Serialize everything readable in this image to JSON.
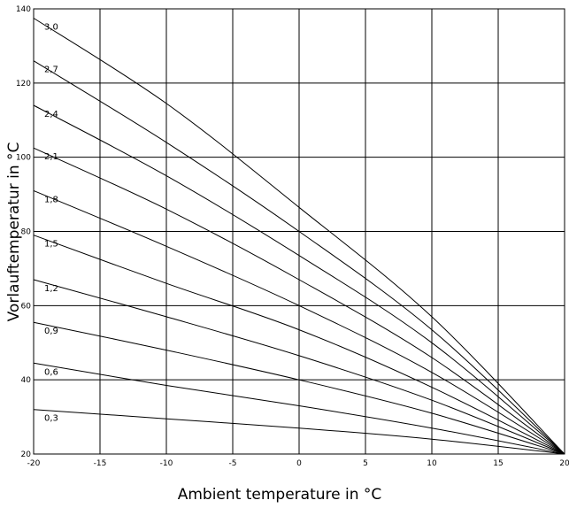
{
  "chart_data": {
    "type": "line",
    "title": "",
    "xlabel": "Ambient temperature in °C",
    "ylabel": "Vorlauftemperatur in °C",
    "xlim": [
      -20,
      20
    ],
    "ylim": [
      20,
      140
    ],
    "xticks": [
      -20,
      -15,
      -10,
      -5,
      0,
      5,
      10,
      15,
      20
    ],
    "yticks": [
      20,
      40,
      60,
      80,
      100,
      120,
      140
    ],
    "ytick_labels": [
      "20",
      "40",
      "60",
      "80",
      "100",
      "120",
      "140"
    ],
    "grid": true,
    "series": [
      {
        "name": "0,3",
        "x": [
          -20,
          -10,
          0,
          10,
          20
        ],
        "y": [
          32,
          29.5,
          27,
          24,
          20
        ]
      },
      {
        "name": "0,6",
        "x": [
          -20,
          -10,
          0,
          10,
          20
        ],
        "y": [
          44.5,
          38.5,
          33,
          27,
          20
        ]
      },
      {
        "name": "0,9",
        "x": [
          -20,
          -10,
          0,
          10,
          20
        ],
        "y": [
          55.5,
          48,
          40,
          31,
          20
        ]
      },
      {
        "name": "1,2",
        "x": [
          -20,
          -10,
          0,
          10,
          20
        ],
        "y": [
          67,
          57,
          46.5,
          34.5,
          20
        ]
      },
      {
        "name": "1,5",
        "x": [
          -20,
          -10,
          0,
          10,
          20
        ],
        "y": [
          79,
          66,
          53.5,
          38,
          20
        ]
      },
      {
        "name": "1,8",
        "x": [
          -20,
          -10,
          0,
          10,
          20
        ],
        "y": [
          91,
          76,
          60,
          42,
          20
        ]
      },
      {
        "name": "2,1",
        "x": [
          -20,
          -10,
          0,
          10,
          20
        ],
        "y": [
          102.5,
          86,
          67,
          46,
          20
        ]
      },
      {
        "name": "2,4",
        "x": [
          -20,
          -10,
          0,
          10,
          20
        ],
        "y": [
          114,
          95,
          73.5,
          50,
          20
        ]
      },
      {
        "name": "2,7",
        "x": [
          -20,
          -10,
          0,
          10,
          20
        ],
        "y": [
          126,
          104,
          80,
          53.5,
          20
        ]
      },
      {
        "name": "3,0",
        "x": [
          -20,
          -10,
          0,
          10,
          20
        ],
        "y": [
          137.5,
          114.5,
          86.5,
          57,
          20
        ]
      }
    ]
  }
}
